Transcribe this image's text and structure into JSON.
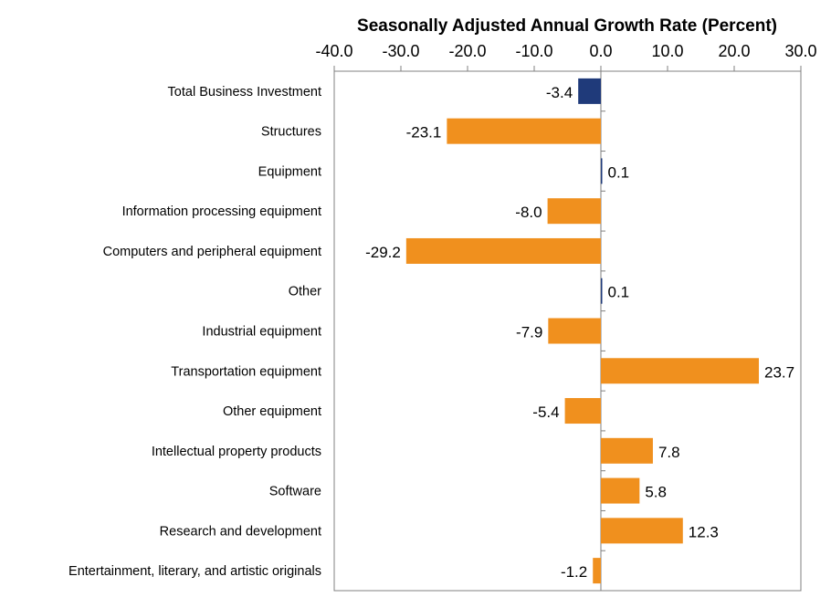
{
  "chart_data": {
    "type": "bar",
    "orientation": "horizontal",
    "title": "Seasonally Adjusted Annual Growth Rate (Percent)",
    "xlim": [
      -40,
      30
    ],
    "xticks": [
      -40,
      -30,
      -20,
      -10,
      0,
      10,
      20,
      30
    ],
    "xtick_labels": [
      "-40.0",
      "-30.0",
      "-20.0",
      "-10.0",
      "0.0",
      "10.0",
      "20.0",
      "30.0"
    ],
    "axis_position": "top",
    "grid": false,
    "categories": [
      "Total Business Investment",
      "Structures",
      "Equipment",
      "Information processing equipment",
      "Computers and peripheral equipment",
      "Other",
      "Industrial equipment",
      "Transportation equipment",
      "Other equipment",
      "Intellectual property products",
      "Software ",
      "Research and development ",
      "Entertainment, literary, and artistic originals"
    ],
    "values": [
      -3.4,
      -23.1,
      0.1,
      -8.0,
      -29.2,
      0.1,
      -7.9,
      23.7,
      -5.4,
      7.8,
      5.8,
      12.3,
      -1.2
    ],
    "value_labels": [
      "-3.4",
      "-23.1",
      "0.1",
      "-8.0",
      "-29.2",
      "0.1",
      "-7.9",
      "23.7",
      "-5.4",
      "7.8",
      "5.8",
      "12.3",
      "-1.2"
    ],
    "bar_colors": [
      "#1f3a7a",
      "#f0901e",
      "#1f3a7a",
      "#f0901e",
      "#f0901e",
      "#1f3a7a",
      "#f0901e",
      "#f0901e",
      "#f0901e",
      "#f0901e",
      "#f0901e",
      "#f0901e",
      "#f0901e"
    ],
    "colors": {
      "total": "#1f3a7a",
      "component": "#f0901e",
      "axis": "#808080"
    }
  }
}
